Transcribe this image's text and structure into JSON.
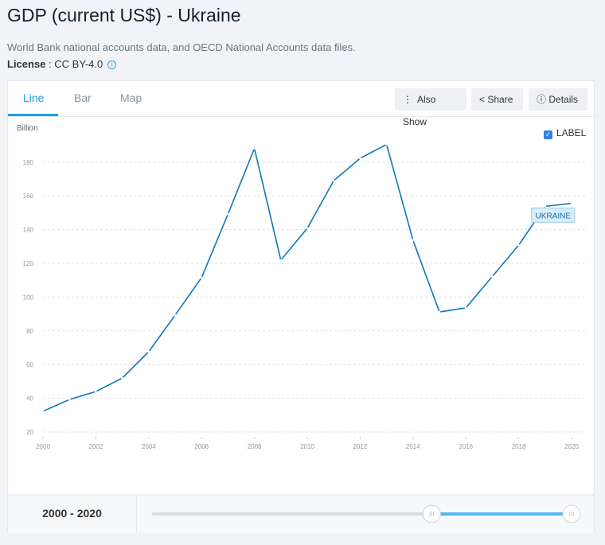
{
  "header": {
    "title": "GDP (current US$) - Ukraine",
    "source": "World Bank national accounts data, and OECD National Accounts data files.",
    "license_label": "License",
    "license_value": ": CC BY-4.0"
  },
  "tabs": [
    {
      "label": "Line",
      "active": true
    },
    {
      "label": "Bar"
    },
    {
      "label": "Map"
    }
  ],
  "toolbar": {
    "also_show": "Also Show",
    "share": "Share",
    "details": "Details"
  },
  "label_toggle": {
    "label": "LABEL",
    "checked": true
  },
  "colors": {
    "accent": "#1f9ee6",
    "line": "#0b77bd"
  },
  "range": {
    "label": "2000 - 2020",
    "min": 1960,
    "max": 2020,
    "from": 2000,
    "to": 2020
  },
  "chart_data": {
    "type": "line",
    "ylabel": "Billion",
    "ylim": [
      20,
      190
    ],
    "yticks": [
      20,
      40,
      60,
      80,
      100,
      120,
      140,
      160,
      180
    ],
    "xticks": [
      2000,
      2002,
      2004,
      2006,
      2008,
      2010,
      2012,
      2014,
      2016,
      2018,
      2020
    ],
    "grid": true,
    "series": [
      {
        "name": "UKRAINE",
        "x": [
          2000,
          2001,
          2002,
          2003,
          2004,
          2005,
          2006,
          2007,
          2008,
          2009,
          2010,
          2011,
          2012,
          2013,
          2014,
          2015,
          2016,
          2017,
          2018,
          2019,
          2020
        ],
        "values": [
          32.3,
          39.3,
          44.0,
          52.0,
          67.6,
          89.3,
          111.5,
          149.2,
          188.1,
          121.9,
          140.8,
          169.0,
          182.3,
          190.5,
          133.7,
          91.2,
          93.6,
          112.2,
          130.8,
          153.8,
          155.6
        ]
      }
    ]
  }
}
